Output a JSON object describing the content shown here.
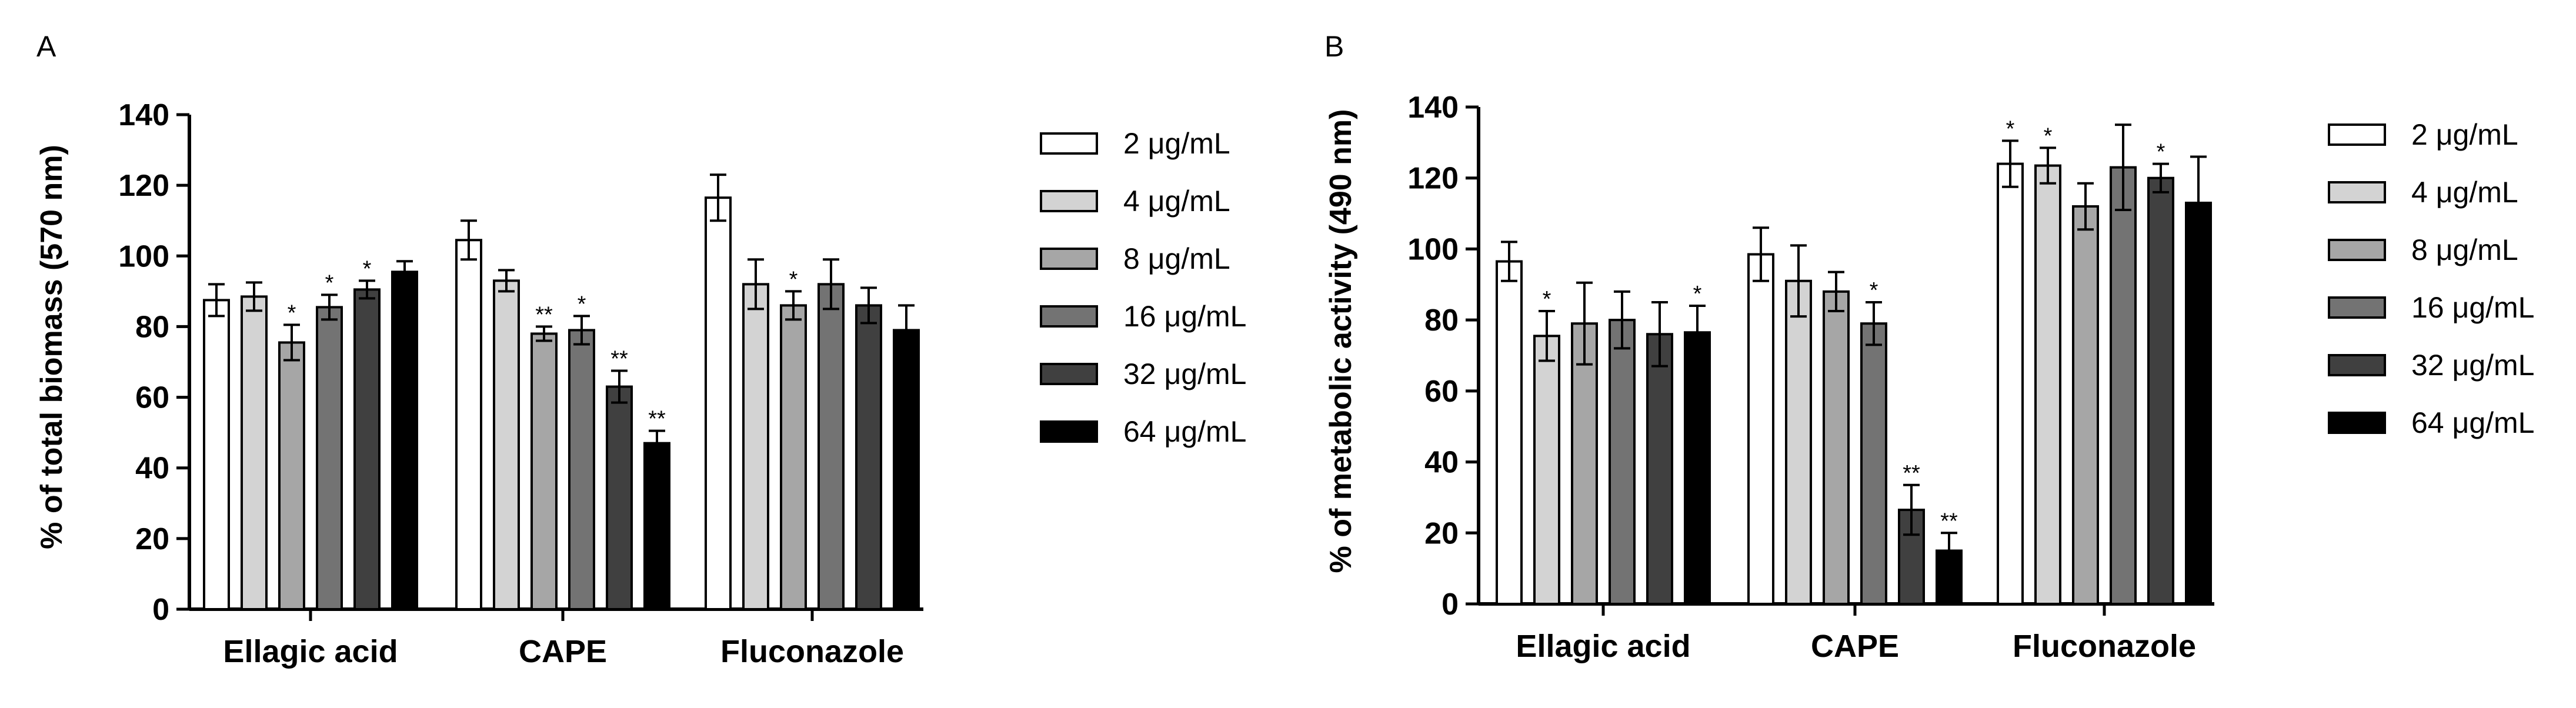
{
  "colors": {
    "levels": [
      "#ffffff",
      "#d3d3d3",
      "#a6a6a6",
      "#737373",
      "#404040",
      "#000000"
    ],
    "stroke": "#000000",
    "background": "#ffffff"
  },
  "legend_labels": [
    "2 μg/mL",
    "4 μg/mL",
    "8 μg/mL",
    "16 μg/mL",
    "32 μg/mL",
    "64 μg/mL"
  ],
  "chart_data": [
    {
      "panel": "A",
      "type": "bar",
      "ylabel": "% of total biomass (570 nm)",
      "xlabel": "",
      "ylim": [
        0,
        140
      ],
      "yticks": [
        "0",
        "20",
        "40",
        "60",
        "80",
        "100",
        "120",
        "140"
      ],
      "categories": [
        "Ellagic acid",
        "CAPE",
        "Fluconazole"
      ],
      "legend": "right",
      "series": [
        {
          "name": "2 μg/mL",
          "values": [
            87.5,
            104.5,
            116.5
          ],
          "errors": [
            4.5,
            5.5,
            6.5
          ],
          "sig": [
            "",
            "",
            ""
          ]
        },
        {
          "name": "4 μg/mL",
          "values": [
            88.5,
            93,
            92
          ],
          "errors": [
            4,
            3,
            7
          ],
          "sig": [
            "",
            "",
            ""
          ]
        },
        {
          "name": "8 μg/mL",
          "values": [
            75.5,
            78,
            86
          ],
          "errors": [
            5,
            2,
            4
          ],
          "sig": [
            "*",
            "**",
            "*"
          ]
        },
        {
          "name": "16 μg/mL",
          "values": [
            85.5,
            79,
            92
          ],
          "errors": [
            3.5,
            4,
            7
          ],
          "sig": [
            "*",
            "*",
            ""
          ]
        },
        {
          "name": "32 μg/mL",
          "values": [
            90.5,
            63,
            86
          ],
          "errors": [
            2.5,
            4.5,
            5
          ],
          "sig": [
            "*",
            "**",
            ""
          ]
        },
        {
          "name": "64 μg/mL",
          "values": [
            95.5,
            47,
            79
          ],
          "errors": [
            3,
            3.5,
            7
          ],
          "sig": [
            "",
            "**",
            ""
          ]
        }
      ]
    },
    {
      "panel": "B",
      "type": "bar",
      "ylabel": "% of metabolic activity (490 nm)",
      "xlabel": "",
      "ylim": [
        0,
        140
      ],
      "yticks": [
        "0",
        "20",
        "40",
        "60",
        "80",
        "100",
        "120",
        "140"
      ],
      "categories": [
        "Ellagic acid",
        "CAPE",
        "Fluconazole"
      ],
      "legend": "right",
      "series": [
        {
          "name": "2 μg/mL",
          "values": [
            96.5,
            98.5,
            124
          ],
          "errors": [
            5.5,
            7.5,
            6.5
          ],
          "sig": [
            "",
            "",
            "*"
          ]
        },
        {
          "name": "4 μg/mL",
          "values": [
            75.5,
            91,
            123.5
          ],
          "errors": [
            7,
            10,
            5
          ],
          "sig": [
            "*",
            "",
            "*"
          ]
        },
        {
          "name": "8 μg/mL",
          "values": [
            79,
            88,
            112
          ],
          "errors": [
            11.5,
            5.5,
            6.5
          ],
          "sig": [
            "",
            "",
            ""
          ]
        },
        {
          "name": "16 μg/mL",
          "values": [
            80,
            79,
            123
          ],
          "errors": [
            8,
            6,
            12
          ],
          "sig": [
            "",
            "*",
            ""
          ]
        },
        {
          "name": "32 μg/mL",
          "values": [
            76,
            26.5,
            120
          ],
          "errors": [
            9,
            7,
            4
          ],
          "sig": [
            "",
            "**",
            "*"
          ]
        },
        {
          "name": "64 μg/mL",
          "values": [
            76.5,
            15,
            113
          ],
          "errors": [
            7.5,
            5,
            13
          ],
          "sig": [
            "*",
            "**",
            ""
          ]
        }
      ]
    }
  ]
}
